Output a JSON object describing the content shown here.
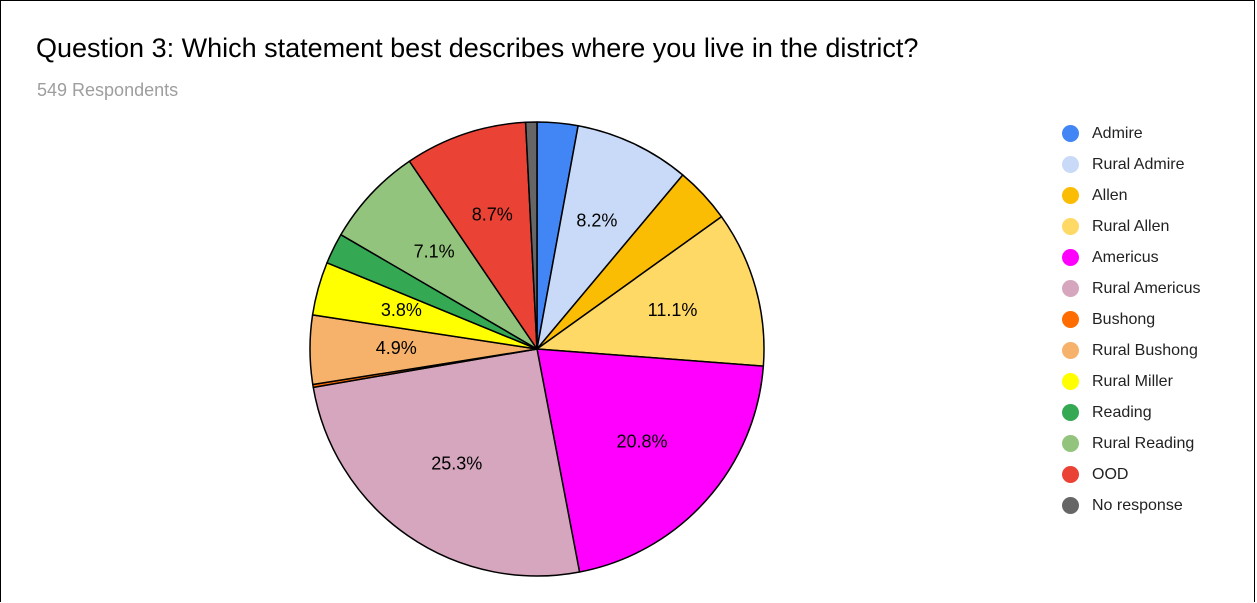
{
  "chart_data": {
    "type": "pie",
    "title": "Question 3:  Which statement best describes where you live in the district?",
    "subtitle": "549 Respondents",
    "legend_position": "right",
    "slices": [
      {
        "name": "Admire",
        "value": 2.9,
        "color": "#4285f4",
        "label": ""
      },
      {
        "name": "Rural Admire",
        "value": 8.2,
        "color": "#c9daf8",
        "label": "8.2%"
      },
      {
        "name": "Allen",
        "value": 4.0,
        "color": "#fbbc04",
        "label": ""
      },
      {
        "name": "Rural Allen",
        "value": 11.1,
        "color": "#ffd966",
        "label": "11.1%"
      },
      {
        "name": "Americus",
        "value": 20.8,
        "color": "#ff00ff",
        "label": "20.8%"
      },
      {
        "name": "Rural Americus",
        "value": 25.3,
        "color": "#d5a6bd",
        "label": "25.3%"
      },
      {
        "name": "Bushong",
        "value": 0.2,
        "color": "#ff6d01",
        "label": ""
      },
      {
        "name": "Rural Bushong",
        "value": 4.9,
        "color": "#f6b26b",
        "label": "4.9%"
      },
      {
        "name": "Rural Miller",
        "value": 3.8,
        "color": "#ffff00",
        "label": "3.8%"
      },
      {
        "name": "Reading",
        "value": 2.2,
        "color": "#34a853",
        "label": ""
      },
      {
        "name": "Rural Reading",
        "value": 7.1,
        "color": "#93c47d",
        "label": "7.1%"
      },
      {
        "name": "OOD",
        "value": 8.7,
        "color": "#ea4335",
        "label": "8.7%"
      },
      {
        "name": "No response",
        "value": 0.8,
        "color": "#666666",
        "label": ""
      }
    ]
  }
}
